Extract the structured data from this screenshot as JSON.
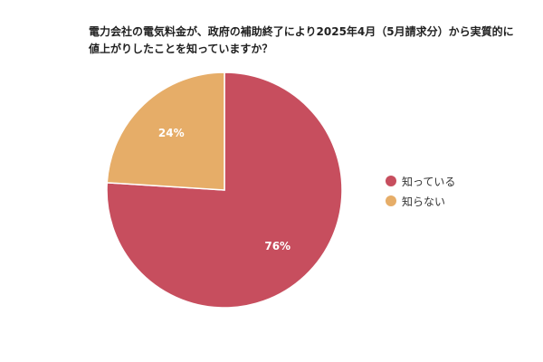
{
  "chart_data": {
    "type": "pie",
    "title": [
      "電力会社の電気料金が、政府の補助終了により2025年4月（5月請求分）から実質的に",
      "値上がりしたことを知っていますか？"
    ],
    "slices": [
      {
        "label": "知っている",
        "value": 76,
        "display": "76%",
        "color": "#c74e5e"
      },
      {
        "label": "知らない",
        "value": 24,
        "display": "24%",
        "color": "#e6ad68"
      }
    ],
    "legend": "right"
  }
}
